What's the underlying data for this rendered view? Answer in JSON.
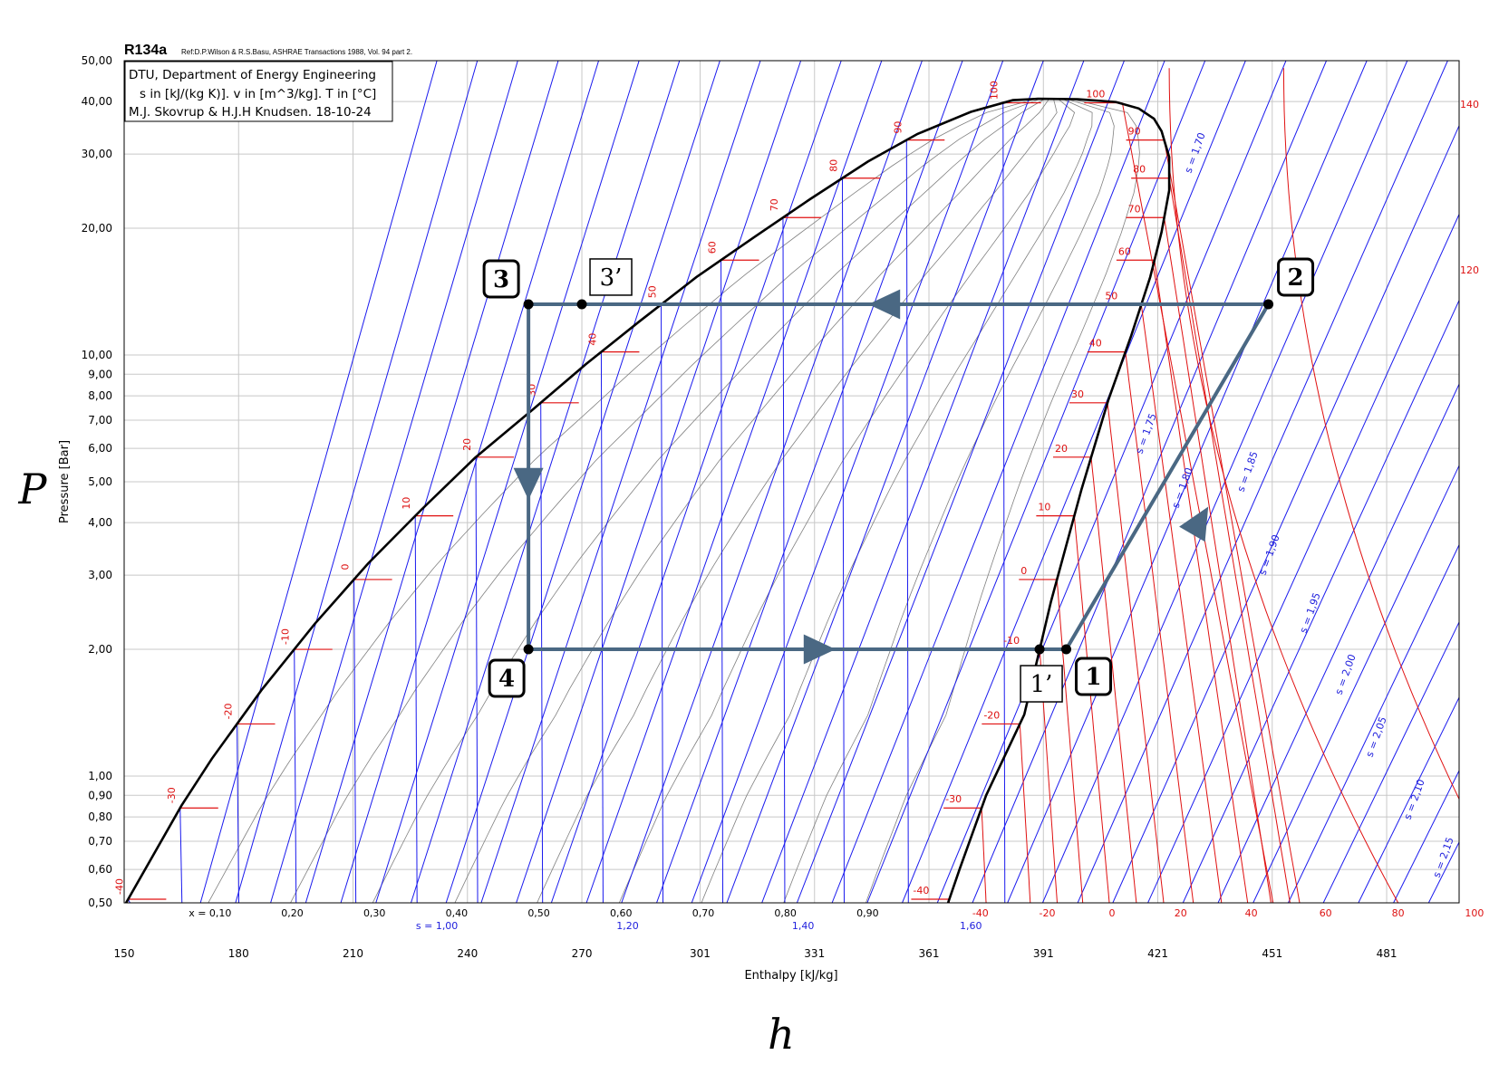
{
  "chart_data": {
    "type": "line",
    "title": "R134a",
    "subtitle": "Ref:D.P.Wilson & R.S.Basu, ASHRAE Transactions 1988, Vol. 94 part 2.",
    "info_lines": [
      "DTU, Department of Energy Engineering",
      "s in [kJ/(kg K)]. v in [m^3/kg]. T in [°C]",
      "M.J. Skovrup & H.J.H Knudsen. 18-10-24"
    ],
    "xlabel": "Enthalpy [kJ/kg]",
    "ylabel": "Pressure [Bar]",
    "x_symbol": "h",
    "y_symbol": "P",
    "xlim": [
      150,
      500
    ],
    "ylim": [
      0.5,
      50
    ],
    "y_scale": "log",
    "grid": true,
    "x_ticks": [
      "150",
      "180",
      "210",
      "240",
      "270",
      "301",
      "331",
      "361",
      "391",
      "421",
      "451",
      "481"
    ],
    "y_ticks": [
      "0,50",
      "0,60",
      "0,70",
      "0,80",
      "0,90",
      "1,00",
      "2,00",
      "3,00",
      "4,00",
      "5,00",
      "6,00",
      "7,00",
      "8,00",
      "9,00",
      "10,00",
      "20,00",
      "30,00",
      "40,00",
      "50,00"
    ],
    "quality_ticks": [
      "x = 0,10",
      "0,20",
      "0,30",
      "0,40",
      "0,50",
      "0,60",
      "0,70",
      "0,80",
      "0,90"
    ],
    "entropy_ticks": [
      "s = 1,00",
      "1,20",
      "1,40",
      "1,60"
    ],
    "temperature_ticks": [
      "-40",
      "-20",
      "0",
      "20",
      "40",
      "60",
      "80",
      "100"
    ],
    "isotherm_labels": [
      "-40",
      "-30",
      "-20",
      "-10",
      "0",
      "10",
      "20",
      "30",
      "40",
      "50",
      "60",
      "70",
      "80",
      "90",
      "100"
    ],
    "superheat_labels": [
      "-40",
      "-30",
      "-20",
      "-10",
      "0",
      "10",
      "20",
      "30",
      "40",
      "50",
      "60",
      "70",
      "80",
      "90",
      "100",
      "120",
      "140"
    ],
    "isentrope_labels": [
      "s = 1,70",
      "s = 1,75",
      "s = 1,80",
      "s = 1,85",
      "s = 1,90",
      "s = 1,95",
      "s = 2,00",
      "s = 2,05",
      "s = 2,10",
      "s = 2,15"
    ],
    "saturation": {
      "liquid": [
        [
          150.5,
          0.5
        ],
        [
          165,
          0.85
        ],
        [
          173,
          1.1
        ],
        [
          186,
          1.6
        ],
        [
          200,
          2.3
        ],
        [
          214,
          3.2
        ],
        [
          228,
          4.3
        ],
        [
          242,
          5.7
        ],
        [
          257,
          7.4
        ],
        [
          271,
          9.5
        ],
        [
          285,
          12
        ],
        [
          300,
          15.3
        ],
        [
          315,
          19
        ],
        [
          330,
          23.5
        ],
        [
          345,
          28.8
        ],
        [
          358,
          33.5
        ],
        [
          372,
          37.8
        ],
        [
          383,
          40.3
        ],
        [
          389.6,
          40.6
        ]
      ],
      "vapor": [
        [
          389.6,
          40.6
        ],
        [
          400,
          40.5
        ],
        [
          410,
          39.9
        ],
        [
          416,
          38.5
        ],
        [
          420,
          36.4
        ],
        [
          422,
          34
        ],
        [
          424,
          29.5
        ],
        [
          424,
          24.6
        ],
        [
          422,
          19.6
        ],
        [
          419,
          15.3
        ],
        [
          414,
          11.1
        ],
        [
          408,
          7.8
        ],
        [
          401,
          4.8
        ],
        [
          393,
          2.6
        ],
        [
          386,
          1.4
        ],
        [
          376,
          0.9
        ],
        [
          369,
          0.6
        ],
        [
          366,
          0.5
        ]
      ]
    },
    "cycle": {
      "color": "#4a6883",
      "points": [
        {
          "name": "1",
          "h": 397,
          "p": 2.0
        },
        {
          "name": "1’",
          "h": 390,
          "p": 2.0
        },
        {
          "name": "2",
          "h": 450,
          "p": 13.2
        },
        {
          "name": "3",
          "h": 256,
          "p": 13.2
        },
        {
          "name": "3’",
          "h": 270,
          "p": 13.2
        },
        {
          "name": "4",
          "h": 256,
          "p": 2.0
        }
      ]
    },
    "colors": {
      "saturation": "#000000",
      "isotherm": "#e01010",
      "isentrope": "#1a1aee",
      "quality": "#808080",
      "grid": "#c8c8c8",
      "cycle": "#4a6883"
    }
  }
}
